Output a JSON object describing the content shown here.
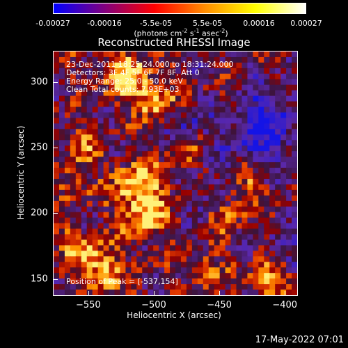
{
  "colorbar": {
    "ticks": [
      "-0.00027",
      "-0.00016",
      "-5.5e-05",
      "5.5e-05",
      "0.00016",
      "0.00027"
    ],
    "tick_values": [
      -0.00027,
      -0.00016,
      -5.5e-05,
      5.5e-05,
      0.00016,
      0.00027
    ],
    "range": [
      -0.00027,
      0.00027
    ],
    "units_base": "(photons cm",
    "units_exp1": "-2",
    "units_mid1": " s",
    "units_exp2": "-1",
    "units_mid2": " asec",
    "units_exp3": "-2",
    "units_end": ")",
    "colors": [
      "#0000ff",
      "#800080",
      "#ff0000",
      "#ff8c00",
      "#ffff00",
      "#ffffff"
    ]
  },
  "header": {
    "line1": "23-Dec-2011 18:25:24.000 to 18:31:24.000",
    "line2": "Detectors: 3F 4F 5F 6F 7F 8F, Att 0",
    "line3": "Energy Range: 25.0 - 50.0 keV",
    "line4": "Clean     Total counts: 7.93E+03"
  },
  "peak_text": "Position of Peak = [-537,154]",
  "timestamp": "17-May-2022 07:01",
  "chart_data": {
    "type": "heatmap",
    "title": "Reconstructed RHESSI Image",
    "xlabel": "Heliocentric X (arcsec)",
    "ylabel": "Heliocentric Y (arcsec)",
    "xlim": [
      -577,
      -390
    ],
    "ylim": [
      137,
      324
    ],
    "xticks": [
      -550,
      -500,
      -450,
      -400
    ],
    "xtick_labels": [
      "−550",
      "−500",
      "−450",
      "−400"
    ],
    "yticks": [
      150,
      200,
      250,
      300
    ],
    "ytick_labels": [
      "150",
      "200",
      "250",
      "300"
    ],
    "peak": [
      -537,
      154
    ],
    "colorscale": "red-temperature with blue-purple negatives"
  }
}
